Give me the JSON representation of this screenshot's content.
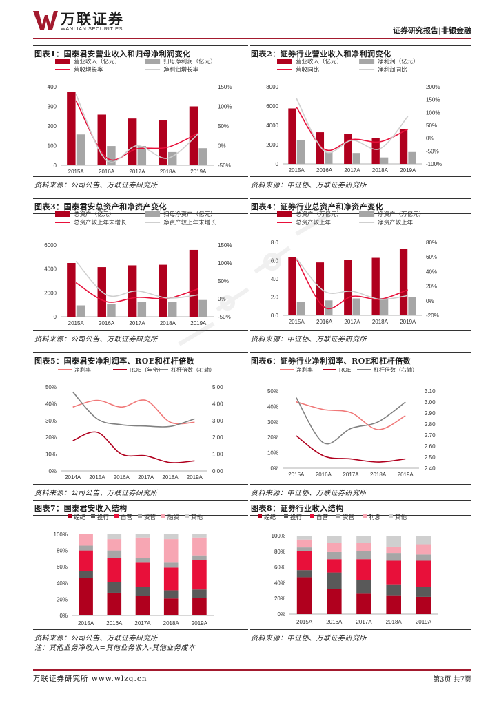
{
  "header": {
    "logo_cn": "万联证券",
    "logo_en": "WANLIAN SECURITIES",
    "report_tag": "证券研究报告|非银金融",
    "brand_color": "#a31a2e"
  },
  "footer": {
    "left": "万联证券研究所 www.wlzq.cn",
    "right": "第3页 共7页"
  },
  "colors": {
    "dark_red": "#b0001e",
    "gray": "#a6a6a6",
    "pink": "#f07878",
    "light_gray": "#cfcfcf",
    "dark_gray": "#808080",
    "red": "#e8103a"
  },
  "figures": [
    {
      "title": "图表1：国泰君安营业收入和归母净利润变化",
      "source": "资料来源：公司公告、万联证券研究所",
      "chart_data": {
        "type": "bar",
        "categories": [
          "2015A",
          "2016A",
          "2017A",
          "2018A",
          "2019A"
        ],
        "series": [
          {
            "name": "营业收入（亿元）",
            "kind": "bar",
            "axis": "left",
            "values": [
              375,
              258,
              238,
              228,
              300
            ]
          },
          {
            "name": "归母净利润（亿元）",
            "kind": "bar",
            "axis": "left",
            "values": [
              157,
              98,
              98,
              67,
              87
            ]
          },
          {
            "name": "营收增长率",
            "kind": "line",
            "axis": "right",
            "values": [
              1.15,
              -0.31,
              -0.08,
              -0.04,
              0.32
            ]
          },
          {
            "name": "净利润增长率",
            "kind": "line",
            "axis": "right",
            "values": [
              1.31,
              -0.38,
              0.0,
              -0.32,
              0.3
            ]
          }
        ],
        "left_ticks": [
          "0",
          "100",
          "200",
          "300",
          "400"
        ],
        "right_ticks": [
          "-50%",
          "0%",
          "50%",
          "100%",
          "150%"
        ],
        "ylim": [
          0,
          400
        ],
        "y2lim": [
          -0.5,
          1.5
        ],
        "legend_position": "top"
      }
    },
    {
      "title": "图表2：证券行业营业收入和净利润变化",
      "source": "资料来源：中证协、万联证券研究所",
      "chart_data": {
        "type": "bar",
        "categories": [
          "2015A",
          "2016A",
          "2017A",
          "2018A",
          "2019A"
        ],
        "series": [
          {
            "name": "营业收入（亿元）",
            "kind": "bar",
            "axis": "left",
            "values": [
              5752,
              3280,
              3113,
              2663,
              3605
            ]
          },
          {
            "name": "净利润（亿元）",
            "kind": "bar",
            "axis": "left",
            "values": [
              2447,
              1234,
              1130,
              666,
              1231
            ]
          },
          {
            "name": "营收同比",
            "kind": "line",
            "axis": "right",
            "values": [
              1.2,
              -0.43,
              -0.05,
              -0.14,
              0.35
            ]
          },
          {
            "name": "净利润同比",
            "kind": "line",
            "axis": "right",
            "values": [
              1.54,
              -0.5,
              -0.08,
              -0.41,
              0.85
            ]
          }
        ],
        "left_ticks": [
          "0",
          "2000",
          "4000",
          "6000",
          "8000"
        ],
        "right_ticks": [
          "-100%",
          "-50%",
          "0%",
          "50%",
          "100%",
          "150%",
          "200%"
        ],
        "ylim": [
          0,
          8000
        ],
        "y2lim": [
          -1.0,
          2.0
        ],
        "legend_position": "top"
      }
    },
    {
      "title": "图表3：国泰君安总资产和净资产变化",
      "source": "资料来源：公司公告、万联证券研究所",
      "chart_data": {
        "type": "bar",
        "categories": [
          "2015A",
          "2016A",
          "2017A",
          "2018A",
          "2019A"
        ],
        "series": [
          {
            "name": "总资产（亿元）",
            "kind": "bar",
            "axis": "left",
            "values": [
              4500,
              4150,
              4300,
              4350,
              5600
            ]
          },
          {
            "name": "归母净资产（亿元）",
            "kind": "bar",
            "axis": "left",
            "values": [
              950,
              1050,
              1250,
              1250,
              1400
            ]
          },
          {
            "name": "总资产较上年末增长",
            "kind": "line",
            "axis": "right",
            "values": [
              0.45,
              -0.08,
              0.04,
              0.01,
              0.28
            ]
          },
          {
            "name": "净资产较上年末增长",
            "kind": "line",
            "axis": "right",
            "values": [
              1.05,
              0.11,
              0.22,
              0.02,
              0.11
            ]
          }
        ],
        "left_ticks": [
          "0",
          "2000",
          "4000",
          "6000"
        ],
        "right_ticks": [
          "-50%",
          "0%",
          "50%",
          "100%",
          "150%"
        ],
        "ylim": [
          0,
          6000
        ],
        "y2lim": [
          -0.5,
          1.5
        ],
        "legend_position": "top"
      }
    },
    {
      "title": "图表4：证券行业总资产和净资产变化",
      "source": "资料来源：中证协、万联证券研究所",
      "chart_data": {
        "type": "bar",
        "categories": [
          "2015A",
          "2016A",
          "2017A",
          "2018A",
          "2019A"
        ],
        "series": [
          {
            "name": "总资产（万亿元）",
            "kind": "bar",
            "axis": "left",
            "values": [
              6.4,
              5.8,
              6.1,
              6.3,
              7.3
            ]
          },
          {
            "name": "净资产（万亿元）",
            "kind": "bar",
            "axis": "left",
            "values": [
              1.45,
              1.64,
              1.85,
              1.89,
              2.02
            ]
          },
          {
            "name": "总资产较上年",
            "kind": "line",
            "axis": "right",
            "values": [
              0.57,
              -0.09,
              0.06,
              0.02,
              0.15
            ]
          },
          {
            "name": "净资产较上年",
            "kind": "line",
            "axis": "right",
            "values": [
              0.58,
              0.13,
              0.13,
              0.02,
              0.07
            ]
          }
        ],
        "left_ticks": [
          "0.0",
          "2.0",
          "4.0",
          "6.0",
          "8.0"
        ],
        "right_ticks": [
          "-20%",
          "0%",
          "20%",
          "40%",
          "60%",
          "80%"
        ],
        "ylim": [
          0,
          8
        ],
        "y2lim": [
          -0.2,
          0.8
        ],
        "legend_position": "top"
      }
    },
    {
      "title": "图表5：国泰君安净利润率、ROE和杠杆倍数",
      "source": "资料来源：公司公告、万联证券研究所",
      "chart_data": {
        "type": "line",
        "categories": [
          "2014A",
          "2015A",
          "2016A",
          "2017A",
          "2018A",
          "2019A"
        ],
        "series": [
          {
            "name": "净利率",
            "axis": "left",
            "values": [
              0.38,
              0.42,
              0.38,
              0.42,
              0.29,
              0.29
            ]
          },
          {
            "name": "ROE（年化）",
            "axis": "left",
            "values": [
              0.18,
              0.23,
              0.1,
              0.09,
              0.05,
              0.06
            ]
          },
          {
            "name": "杠杆倍数（右轴）",
            "axis": "right",
            "values": [
              4.7,
              3.1,
              2.75,
              2.67,
              2.65,
              3.1
            ]
          }
        ],
        "left_ticks": [
          "0%",
          "10%",
          "20%",
          "30%",
          "40%",
          "50%"
        ],
        "right_ticks": [
          "0.00",
          "1.00",
          "2.00",
          "3.00",
          "4.00",
          "5.00"
        ],
        "ylim": [
          0,
          0.5
        ],
        "y2lim": [
          0,
          5
        ],
        "legend_position": "top"
      }
    },
    {
      "title": "图表6：证券行业净利润率、ROE和杠杆倍数",
      "source": "资料来源：中证协、万联证券研究所",
      "chart_data": {
        "type": "line",
        "categories": [
          "2015A",
          "2016A",
          "2017A",
          "2018A",
          "2019A"
        ],
        "series": [
          {
            "name": "净利率",
            "axis": "left",
            "values": [
              0.43,
              0.38,
              0.36,
              0.25,
              0.34
            ]
          },
          {
            "name": "ROE",
            "axis": "left",
            "values": [
              0.21,
              0.08,
              0.06,
              0.04,
              0.06
            ]
          },
          {
            "name": "杠杆倍数（右轴）",
            "axis": "right",
            "values": [
              3.04,
              2.63,
              2.76,
              2.82,
              3.0
            ]
          }
        ],
        "left_ticks": [
          "0%",
          "10%",
          "20%",
          "30%",
          "40%",
          "50%"
        ],
        "right_ticks": [
          "2.40",
          "2.50",
          "2.60",
          "2.70",
          "2.80",
          "2.90",
          "3.00",
          "3.10"
        ],
        "ylim": [
          0,
          0.5
        ],
        "y2lim": [
          2.4,
          3.1
        ],
        "legend_position": "top"
      }
    },
    {
      "title": "图表7：国泰君安收入结构",
      "source": "资料来源：公司公告、万联证券研究所",
      "note": "注：其他业务净收入=其他业务收入-其他业务成本",
      "chart_data": {
        "type": "bar",
        "stacked": true,
        "categories": [
          "2015A",
          "2016A",
          "2017A",
          "2018A",
          "2019A"
        ],
        "series": [
          {
            "name": "经纪",
            "values": [
              46,
              28,
              24,
              21,
              22
            ]
          },
          {
            "name": "投行",
            "values": [
              9,
              13,
              11,
              10,
              10
            ]
          },
          {
            "name": "自营",
            "values": [
              25,
              30,
              30,
              28,
              36
            ]
          },
          {
            "name": "资管",
            "values": [
              6,
              9,
              6,
              6,
              6
            ]
          },
          {
            "name": "融资",
            "values": [
              14,
              14,
              25,
              29,
              22
            ]
          },
          {
            "name": "其他",
            "values": [
              0,
              6,
              4,
              6,
              4
            ]
          }
        ],
        "left_ticks": [
          "0%",
          "20%",
          "40%",
          "60%",
          "80%",
          "100%"
        ],
        "ylim": [
          0,
          100
        ],
        "legend_position": "top"
      }
    },
    {
      "title": "图表8：证券行业收入结构",
      "source": "资料来源：中证协、万联证券研究所",
      "chart_data": {
        "type": "bar",
        "stacked": true,
        "categories": [
          "2015A",
          "2016A",
          "2017A",
          "2018A",
          "2019A"
        ],
        "series": [
          {
            "name": "经纪",
            "values": [
              47,
              32,
              26,
              24,
              22
            ]
          },
          {
            "name": "投行",
            "values": [
              9,
              21,
              17,
              14,
              13
            ]
          },
          {
            "name": "自营",
            "values": [
              24,
              17,
              27,
              30,
              33
            ]
          },
          {
            "name": "资管",
            "values": [
              5,
              9,
              10,
              10,
              8
            ]
          },
          {
            "name": "利息",
            "values": [
              10,
              12,
              11,
              8,
              13
            ]
          },
          {
            "name": "其他",
            "values": [
              5,
              9,
              9,
              14,
              11
            ]
          }
        ],
        "left_ticks": [
          "0%",
          "20%",
          "40%",
          "60%",
          "80%",
          "100%"
        ],
        "ylim": [
          0,
          100
        ],
        "legend_position": "top"
      }
    }
  ]
}
